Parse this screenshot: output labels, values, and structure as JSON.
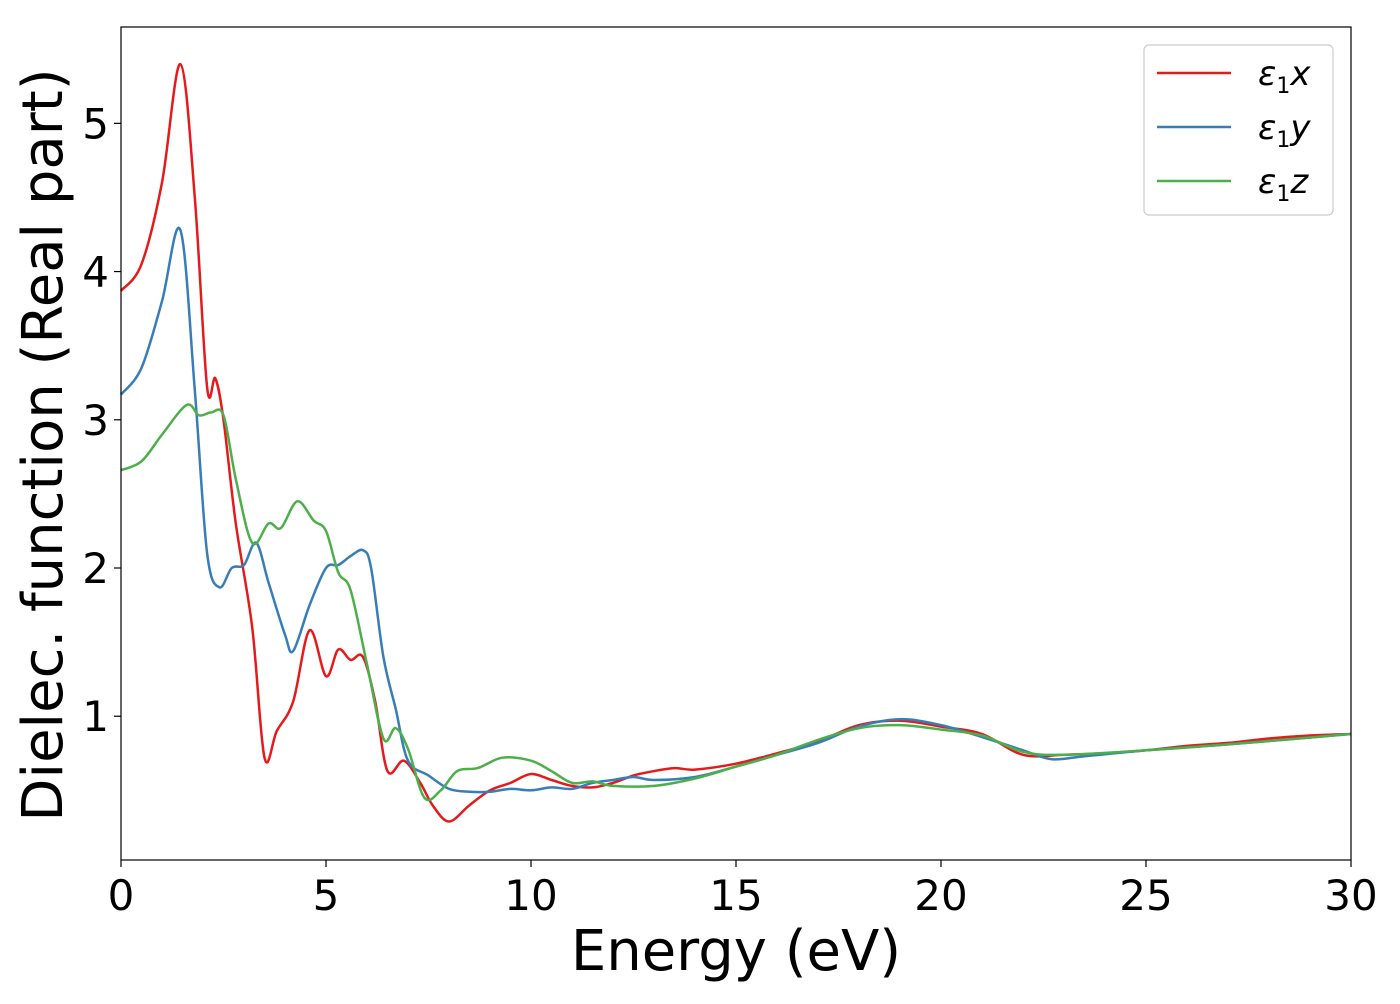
{
  "chart_data": {
    "type": "line",
    "title": "",
    "xlabel": "Energy (eV)",
    "ylabel": "Dielec. function (Real part)",
    "xlim": [
      0,
      30
    ],
    "ylim": [
      0.03,
      5.65
    ],
    "xticks": [
      0,
      5,
      10,
      15,
      20,
      25,
      30
    ],
    "yticks": [
      1,
      2,
      3,
      4,
      5
    ],
    "grid": false,
    "legend_position": "top-right",
    "series": [
      {
        "name": "ε1x",
        "sym": "ε",
        "sub": "1",
        "axis": "x",
        "color": "#e41a1c",
        "x": [
          0,
          0.5,
          1.0,
          1.45,
          1.8,
          2.1,
          2.3,
          2.5,
          2.8,
          3.2,
          3.5,
          3.8,
          4.2,
          4.6,
          5.0,
          5.3,
          5.6,
          5.9,
          6.2,
          6.5,
          6.9,
          7.3,
          7.6,
          8.0,
          8.5,
          9.0,
          9.5,
          10,
          10.5,
          11,
          11.5,
          12,
          12.5,
          13,
          13.5,
          14,
          15,
          16,
          17,
          18,
          19,
          20,
          21,
          22,
          23,
          24,
          25,
          26,
          27,
          28,
          29,
          30
        ],
        "y": [
          3.87,
          4.05,
          4.6,
          5.4,
          4.5,
          3.22,
          3.28,
          3.0,
          2.3,
          1.6,
          0.72,
          0.9,
          1.1,
          1.58,
          1.27,
          1.45,
          1.38,
          1.4,
          1.1,
          0.63,
          0.7,
          0.55,
          0.4,
          0.29,
          0.4,
          0.5,
          0.55,
          0.61,
          0.57,
          0.53,
          0.52,
          0.55,
          0.6,
          0.63,
          0.65,
          0.64,
          0.68,
          0.75,
          0.83,
          0.94,
          0.97,
          0.93,
          0.88,
          0.74,
          0.74,
          0.75,
          0.77,
          0.8,
          0.82,
          0.85,
          0.87,
          0.88
        ]
      },
      {
        "name": "ε1y",
        "sym": "ε",
        "sub": "1",
        "axis": "y",
        "color": "#377eb8",
        "x": [
          0,
          0.5,
          1.0,
          1.45,
          1.8,
          2.1,
          2.4,
          2.7,
          3.0,
          3.3,
          3.6,
          4.0,
          4.2,
          4.6,
          5.0,
          5.3,
          5.6,
          5.9,
          6.1,
          6.4,
          6.7,
          7.0,
          7.5,
          8.0,
          8.5,
          9,
          9.5,
          10,
          10.5,
          11,
          11.5,
          12,
          12.5,
          13,
          14,
          15,
          16,
          17,
          18,
          19,
          20,
          21,
          22,
          22.7,
          23.5,
          25,
          27,
          30
        ],
        "y": [
          3.17,
          3.35,
          3.8,
          4.28,
          3.2,
          2.1,
          1.87,
          2.0,
          2.02,
          2.17,
          1.9,
          1.55,
          1.44,
          1.75,
          2.0,
          2.02,
          2.08,
          2.12,
          2.0,
          1.4,
          1.05,
          0.7,
          0.6,
          0.51,
          0.49,
          0.49,
          0.51,
          0.5,
          0.52,
          0.51,
          0.55,
          0.57,
          0.59,
          0.57,
          0.59,
          0.66,
          0.74,
          0.82,
          0.93,
          0.98,
          0.94,
          0.86,
          0.77,
          0.71,
          0.73,
          0.77,
          0.81,
          0.88
        ]
      },
      {
        "name": "ε1z",
        "sym": "ε",
        "sub": "1",
        "axis": "z",
        "color": "#4daf4a",
        "x": [
          0,
          0.5,
          1.0,
          1.6,
          1.9,
          2.2,
          2.5,
          2.8,
          3.2,
          3.6,
          3.9,
          4.3,
          4.7,
          5.0,
          5.3,
          5.6,
          6.0,
          6.4,
          6.7,
          7.0,
          7.4,
          7.8,
          8.2,
          8.7,
          9.3,
          10,
          10.5,
          11,
          11.5,
          12,
          13,
          14,
          15,
          16,
          17,
          18,
          19,
          20,
          21,
          22,
          23,
          25,
          27,
          30
        ],
        "y": [
          2.66,
          2.72,
          2.9,
          3.1,
          3.03,
          3.05,
          3.03,
          2.6,
          2.17,
          2.3,
          2.27,
          2.45,
          2.32,
          2.25,
          1.97,
          1.85,
          1.35,
          0.85,
          0.92,
          0.78,
          0.45,
          0.5,
          0.63,
          0.65,
          0.72,
          0.7,
          0.63,
          0.55,
          0.56,
          0.53,
          0.53,
          0.58,
          0.66,
          0.74,
          0.84,
          0.92,
          0.94,
          0.91,
          0.87,
          0.76,
          0.74,
          0.77,
          0.81,
          0.88
        ]
      }
    ]
  }
}
